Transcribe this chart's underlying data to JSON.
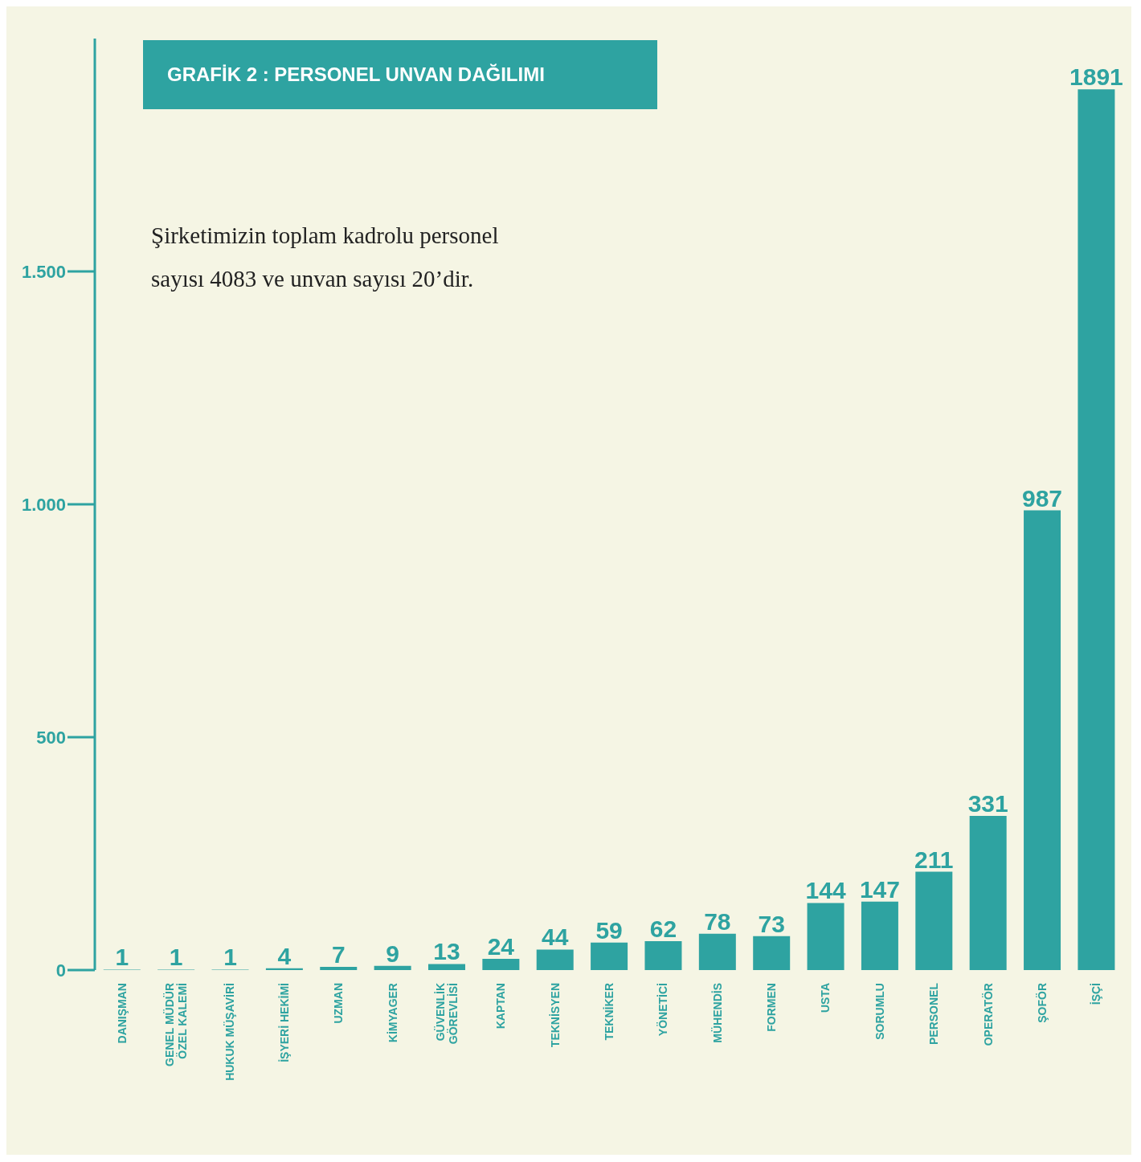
{
  "chart_data": {
    "type": "bar",
    "title": "GRAFİK 2 : PERSONEL UNVAN DAĞILIMI",
    "annotations": [
      "Şirketimizin toplam kadrolu personel sayısı 4083 ve unvan sayısı 20’dir."
    ],
    "categories": [
      "DANIŞMAN",
      "GENEL MÜDÜR ÖZEL KALEMİ",
      "HUKUK MÜŞAVİRİ",
      "İŞYERİ HEKİMİ",
      "UZMAN",
      "KİMYAGER",
      "GÜVENLİK GÖREVLİSİ",
      "KAPTAN",
      "TEKNİSYEN",
      "TEKNİKER",
      "YÖNETİCİ",
      "MÜHENDİS",
      "FORMEN",
      "USTA",
      "SORUMLU",
      "PERSONEL",
      "OPERATÖR",
      "ŞOFÖR",
      "İŞÇİ"
    ],
    "values": [
      1,
      1,
      1,
      4,
      7,
      9,
      13,
      24,
      44,
      59,
      62,
      78,
      73,
      144,
      147,
      211,
      331,
      987,
      1891
    ],
    "color": "#2ea3a1",
    "ylim": [
      0,
      2000
    ],
    "yticks": [
      0,
      500,
      {
        "value": 1000,
        "label": "1.000"
      },
      {
        "value": 1500,
        "label": "1.500"
      }
    ],
    "data_labels": true,
    "grid": false,
    "legend": false
  }
}
